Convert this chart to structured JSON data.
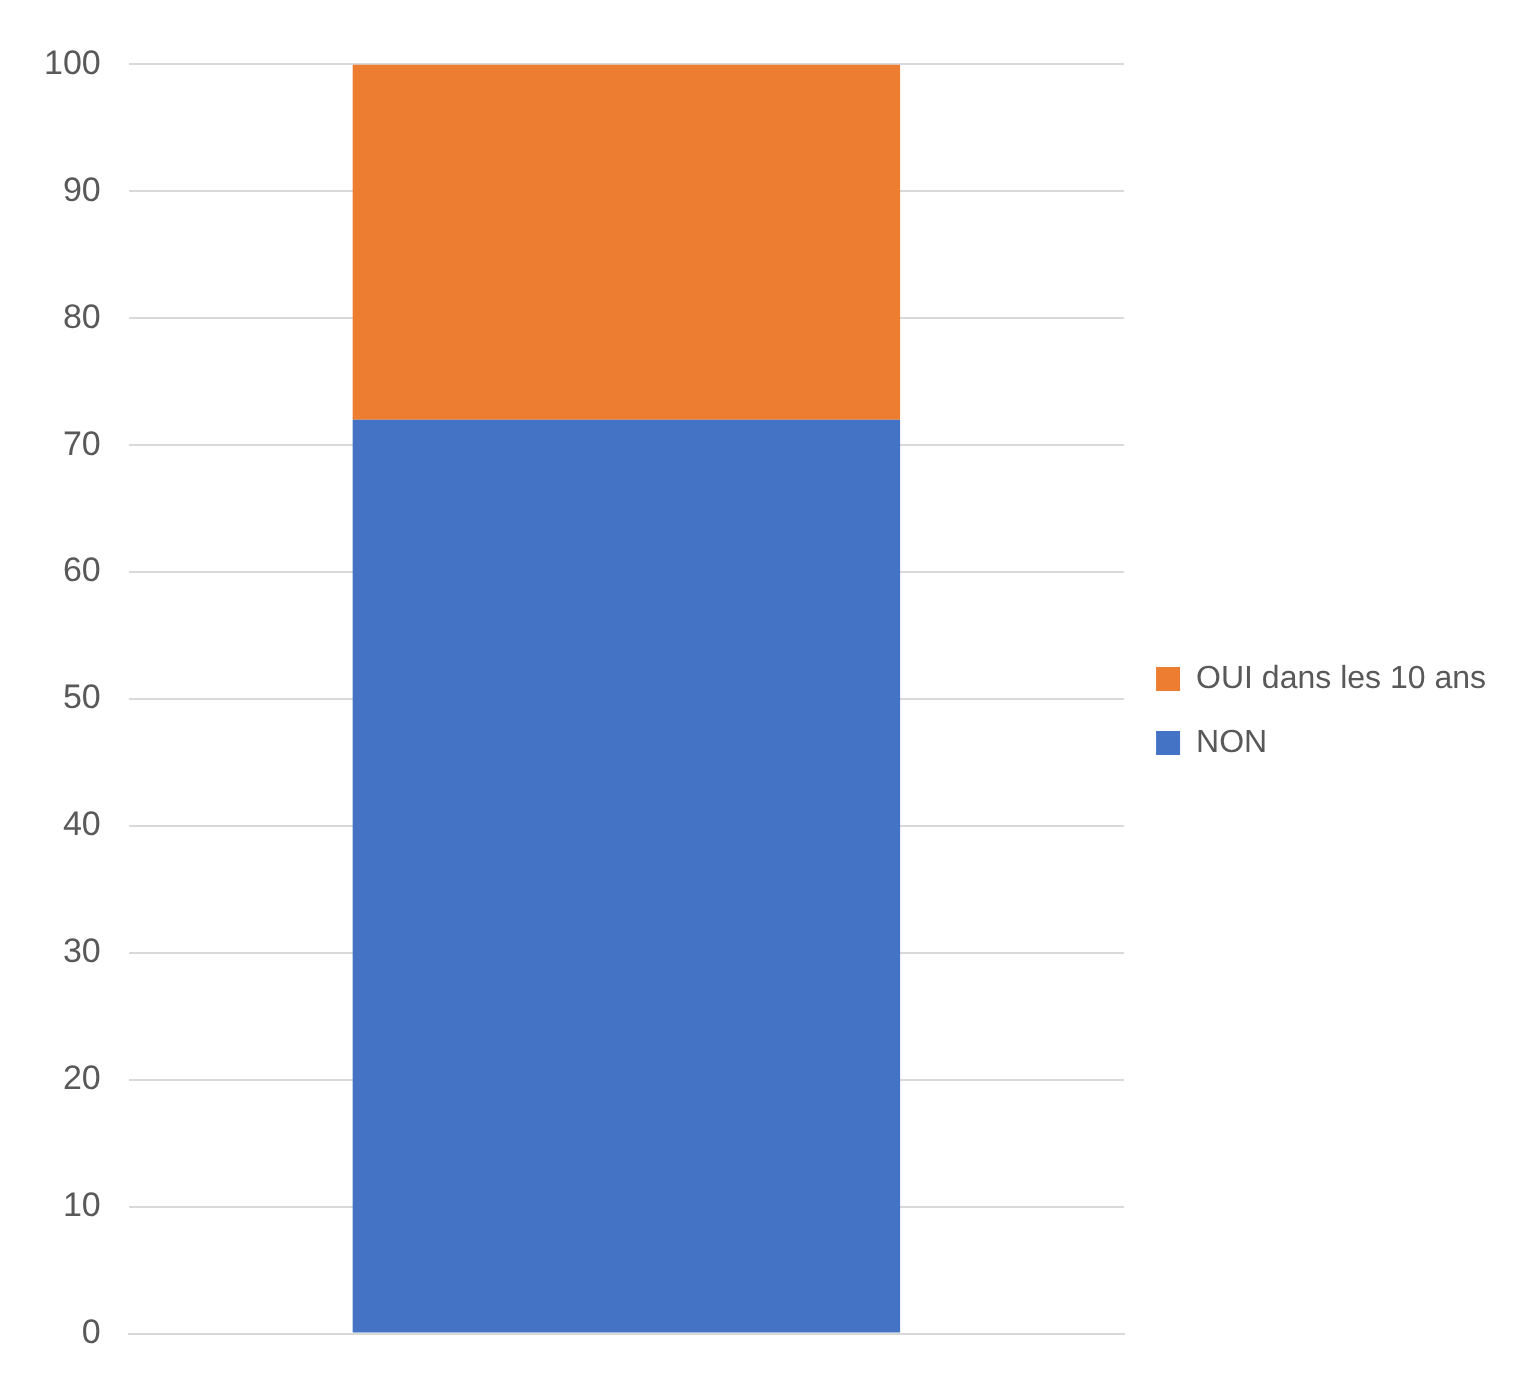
{
  "chart_data": {
    "type": "bar",
    "stacked": true,
    "categories": [
      null
    ],
    "series": [
      {
        "name": "NON",
        "color": "#4472c4",
        "values": [
          72
        ]
      },
      {
        "name": "OUI dans les 10 ans",
        "color": "#ed7d31",
        "values": [
          28
        ]
      }
    ],
    "ylim": [
      0,
      100
    ],
    "yticks": [
      0,
      10,
      20,
      30,
      40,
      50,
      60,
      70,
      80,
      90,
      100
    ],
    "grid": "y",
    "legend": "right"
  }
}
